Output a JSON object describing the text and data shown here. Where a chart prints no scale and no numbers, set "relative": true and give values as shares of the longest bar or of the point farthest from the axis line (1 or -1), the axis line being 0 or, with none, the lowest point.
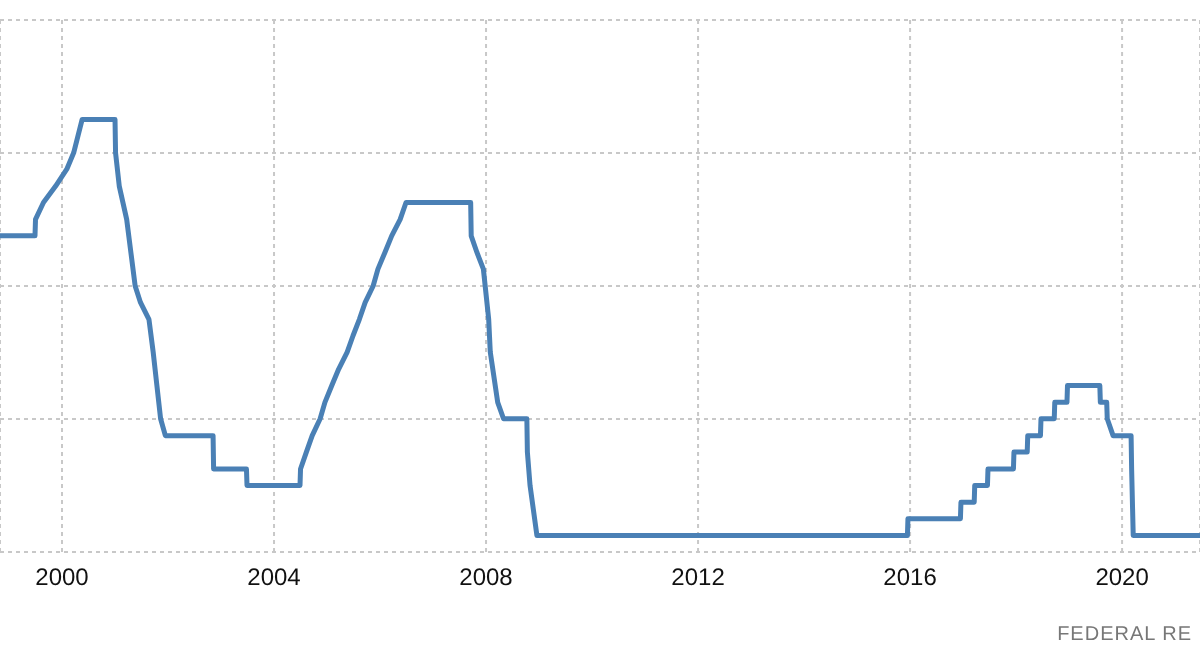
{
  "chart_data": {
    "type": "line",
    "relative": true,
    "x": [
      1998.83,
      1999.49,
      1999.5,
      1999.65,
      1999.88,
      2000.09,
      2000.22,
      2000.38,
      2001.0,
      2001.01,
      2001.08,
      2001.22,
      2001.3,
      2001.38,
      2001.48,
      2001.64,
      2001.72,
      2001.79,
      2001.86,
      2001.95,
      2002.85,
      2002.86,
      2003.48,
      2003.49,
      2004.49,
      2004.5,
      2004.61,
      2004.72,
      2004.87,
      2004.96,
      2005.09,
      2005.22,
      2005.38,
      2005.49,
      2005.61,
      2005.72,
      2005.87,
      2005.96,
      2006.09,
      2006.22,
      2006.38,
      2006.49,
      2007.71,
      2007.72,
      2007.83,
      2007.95,
      2008.05,
      2008.08,
      2008.22,
      2008.33,
      2008.77,
      2008.78,
      2008.83,
      2008.96,
      2015.95,
      2015.96,
      2016.95,
      2016.96,
      2017.21,
      2017.22,
      2017.46,
      2017.47,
      2017.95,
      2017.96,
      2018.21,
      2018.22,
      2018.46,
      2018.47,
      2018.72,
      2018.73,
      2018.96,
      2018.97,
      2019.58,
      2019.59,
      2019.71,
      2019.72,
      2019.83,
      2020.17,
      2020.18,
      2020.21,
      2021.47
    ],
    "series": [
      {
        "color": "#4a80b5",
        "values": [
          0.731,
          0.731,
          0.769,
          0.808,
          0.846,
          0.885,
          0.923,
          1,
          1,
          0.923,
          0.846,
          0.769,
          0.692,
          0.615,
          0.577,
          0.538,
          0.462,
          0.385,
          0.308,
          0.269,
          0.269,
          0.192,
          0.192,
          0.154,
          0.154,
          0.192,
          0.231,
          0.269,
          0.308,
          0.346,
          0.385,
          0.423,
          0.462,
          0.5,
          0.538,
          0.577,
          0.615,
          0.654,
          0.692,
          0.731,
          0.769,
          0.808,
          0.808,
          0.731,
          0.692,
          0.654,
          0.538,
          0.462,
          0.346,
          0.308,
          0.308,
          0.231,
          0.154,
          0.038,
          0.038,
          0.077,
          0.077,
          0.115,
          0.115,
          0.154,
          0.154,
          0.192,
          0.192,
          0.231,
          0.231,
          0.269,
          0.269,
          0.308,
          0.308,
          0.346,
          0.346,
          0.385,
          0.385,
          0.346,
          0.346,
          0.308,
          0.269,
          0.269,
          0.192,
          0.038,
          0.038
        ]
      }
    ],
    "xlim": [
      1998.83,
      2021.47
    ],
    "xticks": [
      2000,
      2004,
      2008,
      2012,
      2016,
      2020
    ],
    "grid": true,
    "marker": "none",
    "line_style": "solid",
    "annotations": [
      "FEDERAL RE"
    ]
  }
}
